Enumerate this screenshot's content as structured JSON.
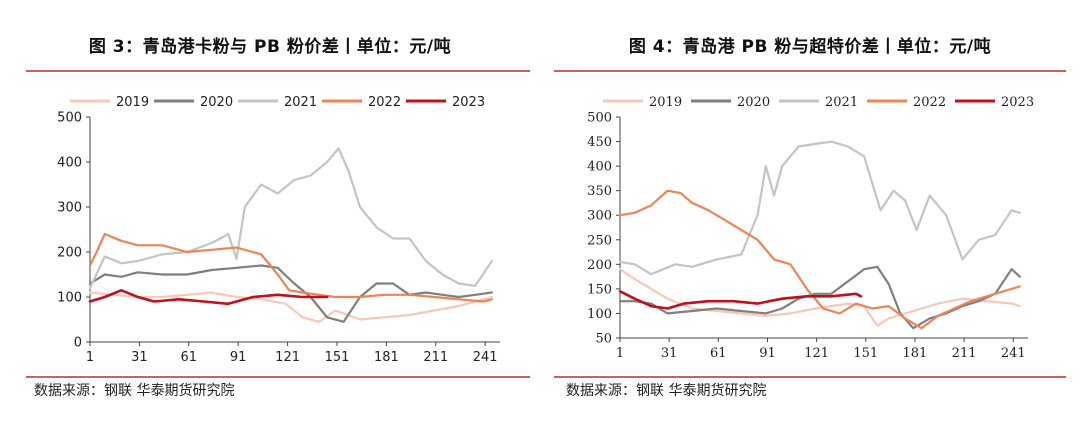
{
  "chart_data": [
    {
      "type": "line",
      "title": "图 3：青岛港卡粉与 PB 粉价差丨单位：元/吨",
      "source": "数据来源：钢联 华泰期货研究院",
      "ylim": [
        0,
        500
      ],
      "yticks": [
        0,
        100,
        200,
        300,
        400,
        500
      ],
      "xlim": [
        1,
        250
      ],
      "xticks": [
        1,
        31,
        61,
        91,
        121,
        151,
        181,
        211,
        241
      ],
      "legend": [
        "2019",
        "2020",
        "2021",
        "2022",
        "2023"
      ],
      "colors": [
        "#f7c8b8",
        "#7f7f7f",
        "#c4c4c4",
        "#ee8355",
        "#c0101e"
      ],
      "series": [
        {
          "name": "2019",
          "x": [
            1,
            15,
            30,
            45,
            60,
            75,
            90,
            105,
            120,
            130,
            140,
            150,
            165,
            180,
            195,
            210,
            225,
            240,
            245
          ],
          "y": [
            110,
            105,
            100,
            100,
            105,
            110,
            100,
            95,
            85,
            55,
            45,
            70,
            50,
            55,
            60,
            70,
            80,
            95,
            100
          ]
        },
        {
          "name": "2020",
          "x": [
            1,
            10,
            20,
            30,
            45,
            60,
            75,
            90,
            105,
            115,
            125,
            135,
            145,
            155,
            165,
            175,
            185,
            195,
            205,
            215,
            225,
            235,
            245
          ],
          "y": [
            130,
            150,
            145,
            155,
            150,
            150,
            160,
            165,
            170,
            165,
            130,
            100,
            55,
            45,
            100,
            130,
            130,
            105,
            110,
            105,
            100,
            105,
            110
          ]
        },
        {
          "name": "2021",
          "x": [
            1,
            10,
            20,
            30,
            45,
            60,
            75,
            85,
            90,
            95,
            105,
            115,
            125,
            135,
            145,
            152,
            158,
            165,
            175,
            185,
            195,
            205,
            215,
            225,
            235,
            245
          ],
          "y": [
            120,
            190,
            175,
            180,
            195,
            200,
            220,
            240,
            185,
            300,
            350,
            330,
            360,
            370,
            400,
            430,
            380,
            300,
            255,
            230,
            230,
            180,
            150,
            130,
            125,
            180
          ]
        },
        {
          "name": "2022",
          "x": [
            1,
            5,
            10,
            20,
            30,
            45,
            60,
            75,
            90,
            105,
            115,
            122,
            130,
            140,
            150,
            165,
            180,
            195,
            210,
            225,
            240,
            245
          ],
          "y": [
            170,
            200,
            240,
            225,
            215,
            215,
            200,
            205,
            210,
            195,
            150,
            115,
            110,
            105,
            100,
            100,
            105,
            105,
            100,
            95,
            90,
            95
          ]
        },
        {
          "name": "2023",
          "x": [
            1,
            10,
            20,
            30,
            40,
            55,
            70,
            85,
            100,
            115,
            130,
            140,
            145
          ],
          "y": [
            90,
            100,
            115,
            100,
            90,
            95,
            90,
            85,
            100,
            105,
            100,
            100,
            100
          ]
        }
      ]
    },
    {
      "type": "line",
      "title": "图 4：青岛港 PB 粉与超特价差丨单位：元/吨",
      "source": "数据来源：钢联 华泰期货研究院",
      "ylim": [
        50,
        500
      ],
      "yticks": [
        50,
        100,
        150,
        200,
        250,
        300,
        350,
        400,
        450,
        500
      ],
      "xlim": [
        1,
        250
      ],
      "xticks": [
        1,
        31,
        61,
        91,
        121,
        151,
        181,
        211,
        241
      ],
      "legend": [
        "2019",
        "2020",
        "2021",
        "2022",
        "2023"
      ],
      "colors": [
        "#f7c8b8",
        "#7f7f7f",
        "#c4c4c4",
        "#ee8355",
        "#c0101e"
      ],
      "series": [
        {
          "name": "2019",
          "x": [
            1,
            10,
            20,
            30,
            45,
            60,
            75,
            90,
            105,
            120,
            140,
            150,
            158,
            165,
            180,
            195,
            210,
            225,
            240,
            245
          ],
          "y": [
            190,
            170,
            150,
            130,
            110,
            105,
            100,
            95,
            100,
            110,
            120,
            115,
            75,
            90,
            105,
            120,
            130,
            125,
            120,
            115
          ]
        },
        {
          "name": "2020",
          "x": [
            1,
            10,
            20,
            30,
            45,
            60,
            75,
            90,
            100,
            110,
            120,
            130,
            140,
            150,
            158,
            165,
            172,
            180,
            190,
            200,
            210,
            220,
            230,
            240,
            245
          ],
          "y": [
            125,
            125,
            120,
            100,
            105,
            110,
            105,
            100,
            110,
            130,
            140,
            140,
            165,
            190,
            195,
            160,
            100,
            70,
            90,
            100,
            115,
            125,
            140,
            190,
            175
          ]
        },
        {
          "name": "2021",
          "x": [
            1,
            10,
            20,
            35,
            45,
            60,
            75,
            85,
            90,
            95,
            100,
            110,
            120,
            130,
            140,
            150,
            160,
            168,
            175,
            182,
            190,
            200,
            210,
            220,
            230,
            240,
            245
          ],
          "y": [
            205,
            200,
            180,
            200,
            195,
            210,
            220,
            300,
            400,
            340,
            400,
            440,
            445,
            450,
            440,
            420,
            310,
            350,
            330,
            270,
            340,
            300,
            210,
            250,
            260,
            310,
            305
          ]
        },
        {
          "name": "2022",
          "x": [
            1,
            10,
            20,
            30,
            38,
            45,
            55,
            65,
            75,
            85,
            95,
            105,
            115,
            125,
            135,
            145,
            155,
            165,
            175,
            185,
            195,
            205,
            215,
            225,
            235,
            245
          ],
          "y": [
            300,
            305,
            320,
            350,
            345,
            325,
            310,
            290,
            270,
            250,
            210,
            200,
            150,
            110,
            100,
            120,
            110,
            115,
            90,
            70,
            95,
            110,
            125,
            135,
            145,
            155
          ]
        },
        {
          "name": "2023",
          "x": [
            1,
            10,
            20,
            30,
            40,
            55,
            70,
            85,
            100,
            115,
            130,
            145,
            148
          ],
          "y": [
            145,
            130,
            115,
            110,
            120,
            125,
            125,
            120,
            130,
            135,
            135,
            140,
            135
          ]
        }
      ]
    }
  ]
}
